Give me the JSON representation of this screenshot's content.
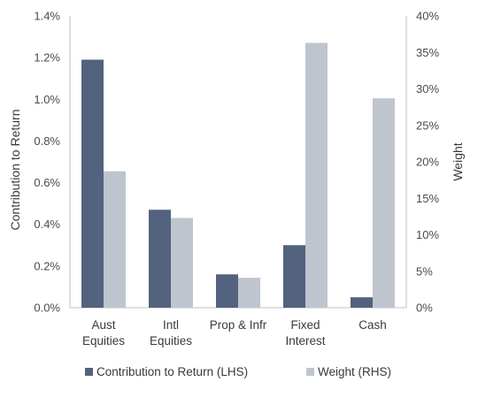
{
  "chart_data": {
    "type": "bar",
    "categories": [
      [
        "Aust",
        "Equities"
      ],
      [
        "Intl",
        "Equities"
      ],
      [
        "Prop & Infr"
      ],
      [
        "Fixed",
        "Interest"
      ],
      [
        "Cash"
      ]
    ],
    "series": [
      {
        "name": "Contribution to Return (LHS)",
        "axis": "left",
        "color": "#52627f",
        "values": [
          1.19,
          0.47,
          0.16,
          0.3,
          0.05
        ]
      },
      {
        "name": "Weight (RHS)",
        "axis": "right",
        "color": "#bfc5cf",
        "values": [
          18.7,
          12.3,
          4.1,
          36.3,
          28.7
        ]
      }
    ],
    "ylabel": "Contribution to Return",
    "y2label": "Weight",
    "ylim": [
      0,
      1.4
    ],
    "y2lim": [
      0,
      40
    ],
    "yticks": [
      "0.0%",
      "0.2%",
      "0.4%",
      "0.6%",
      "0.8%",
      "1.0%",
      "1.2%",
      "1.4%"
    ],
    "y2ticks": [
      "0%",
      "5%",
      "10%",
      "15%",
      "20%",
      "25%",
      "30%",
      "35%",
      "40%"
    ],
    "legend_position": "bottom",
    "grid": false
  }
}
